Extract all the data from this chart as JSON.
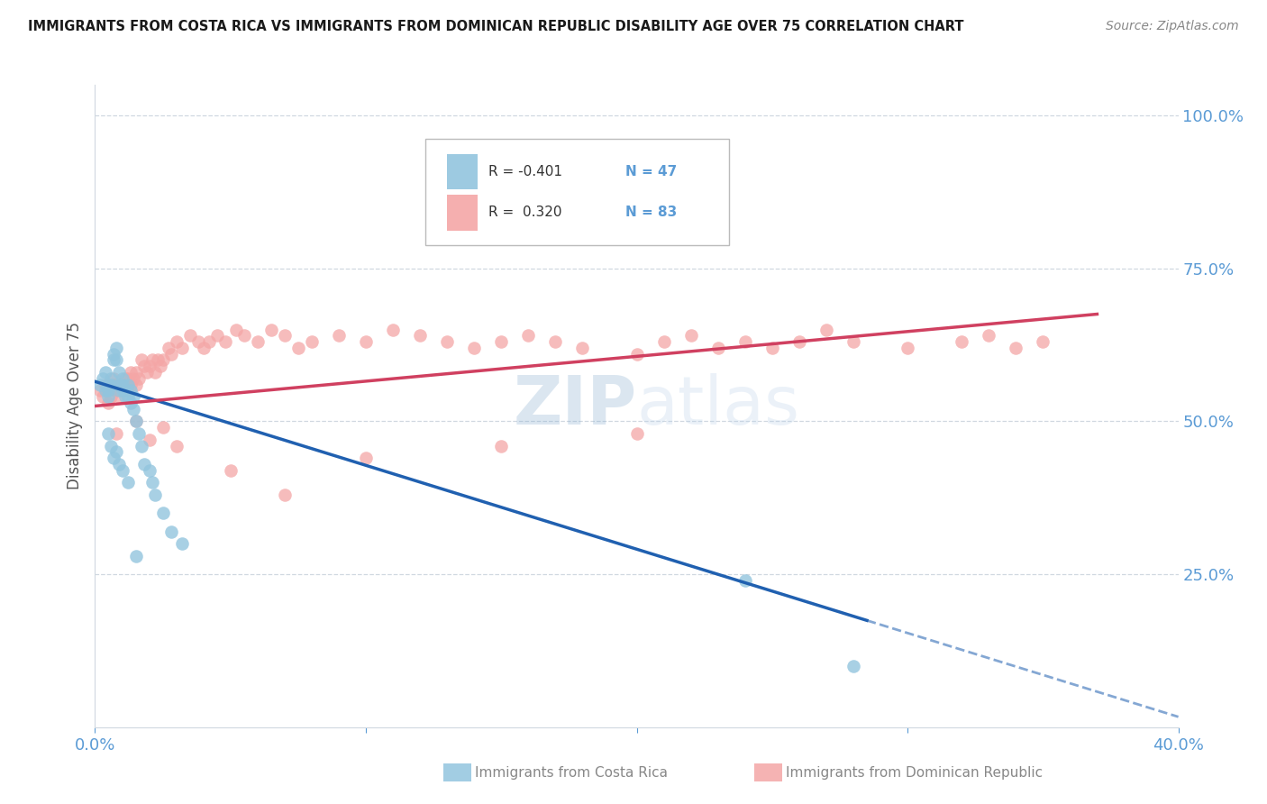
{
  "title": "IMMIGRANTS FROM COSTA RICA VS IMMIGRANTS FROM DOMINICAN REPUBLIC DISABILITY AGE OVER 75 CORRELATION CHART",
  "source": "Source: ZipAtlas.com",
  "xlabel_bottom": "Immigrants from Costa Rica",
  "xlabel_bottom2": "Immigrants from Dominican Republic",
  "ylabel": "Disability Age Over 75",
  "xlim": [
    0.0,
    0.4
  ],
  "ylim": [
    0.0,
    1.05
  ],
  "right_yticklabels": [
    "100.0%",
    "75.0%",
    "50.0%",
    "25.0%"
  ],
  "right_ytick_vals": [
    1.0,
    0.75,
    0.5,
    0.25
  ],
  "legend_r1": "R = -0.401",
  "legend_n1": "N = 47",
  "legend_r2": "R =  0.320",
  "legend_n2": "N = 83",
  "blue_color": "#92c5de",
  "pink_color": "#f4a6a6",
  "blue_line_color": "#2060b0",
  "pink_line_color": "#d04060",
  "axis_color": "#5b9bd5",
  "watermark_color": "#b8cfe8",
  "costa_rica_x": [
    0.002,
    0.003,
    0.004,
    0.004,
    0.005,
    0.005,
    0.005,
    0.006,
    0.006,
    0.007,
    0.007,
    0.008,
    0.008,
    0.009,
    0.009,
    0.009,
    0.01,
    0.01,
    0.01,
    0.011,
    0.011,
    0.012,
    0.012,
    0.013,
    0.013,
    0.014,
    0.014,
    0.015,
    0.016,
    0.017,
    0.018,
    0.02,
    0.021,
    0.022,
    0.025,
    0.028,
    0.032,
    0.005,
    0.006,
    0.007,
    0.008,
    0.009,
    0.01,
    0.012,
    0.015,
    0.24,
    0.28
  ],
  "costa_rica_y": [
    0.56,
    0.57,
    0.55,
    0.58,
    0.56,
    0.55,
    0.54,
    0.56,
    0.57,
    0.6,
    0.61,
    0.6,
    0.62,
    0.58,
    0.55,
    0.56,
    0.57,
    0.55,
    0.56,
    0.54,
    0.55,
    0.56,
    0.54,
    0.55,
    0.53,
    0.52,
    0.54,
    0.5,
    0.48,
    0.46,
    0.43,
    0.42,
    0.4,
    0.38,
    0.35,
    0.32,
    0.3,
    0.48,
    0.46,
    0.44,
    0.45,
    0.43,
    0.42,
    0.4,
    0.28,
    0.24,
    0.1
  ],
  "dominican_x": [
    0.002,
    0.003,
    0.004,
    0.005,
    0.005,
    0.006,
    0.007,
    0.007,
    0.008,
    0.008,
    0.009,
    0.01,
    0.01,
    0.011,
    0.011,
    0.012,
    0.012,
    0.013,
    0.013,
    0.014,
    0.015,
    0.015,
    0.016,
    0.017,
    0.018,
    0.019,
    0.02,
    0.021,
    0.022,
    0.023,
    0.024,
    0.025,
    0.027,
    0.028,
    0.03,
    0.032,
    0.035,
    0.038,
    0.04,
    0.042,
    0.045,
    0.048,
    0.052,
    0.055,
    0.06,
    0.065,
    0.07,
    0.075,
    0.08,
    0.09,
    0.1,
    0.11,
    0.12,
    0.13,
    0.14,
    0.15,
    0.16,
    0.17,
    0.18,
    0.2,
    0.21,
    0.22,
    0.23,
    0.24,
    0.25,
    0.26,
    0.27,
    0.28,
    0.3,
    0.32,
    0.33,
    0.34,
    0.35,
    0.008,
    0.015,
    0.02,
    0.025,
    0.03,
    0.05,
    0.07,
    0.1,
    0.15,
    0.2
  ],
  "dominican_y": [
    0.55,
    0.54,
    0.56,
    0.55,
    0.53,
    0.54,
    0.56,
    0.57,
    0.55,
    0.56,
    0.54,
    0.56,
    0.55,
    0.57,
    0.56,
    0.55,
    0.57,
    0.56,
    0.58,
    0.57,
    0.56,
    0.58,
    0.57,
    0.6,
    0.59,
    0.58,
    0.59,
    0.6,
    0.58,
    0.6,
    0.59,
    0.6,
    0.62,
    0.61,
    0.63,
    0.62,
    0.64,
    0.63,
    0.62,
    0.63,
    0.64,
    0.63,
    0.65,
    0.64,
    0.63,
    0.65,
    0.64,
    0.62,
    0.63,
    0.64,
    0.63,
    0.65,
    0.64,
    0.63,
    0.62,
    0.63,
    0.64,
    0.63,
    0.62,
    0.61,
    0.63,
    0.64,
    0.62,
    0.63,
    0.62,
    0.63,
    0.65,
    0.63,
    0.62,
    0.63,
    0.64,
    0.62,
    0.63,
    0.48,
    0.5,
    0.47,
    0.49,
    0.46,
    0.42,
    0.38,
    0.44,
    0.46,
    0.48
  ],
  "cr_line_x0": 0.0,
  "cr_line_y0": 0.565,
  "cr_line_x1": 0.285,
  "cr_line_y1": 0.175,
  "cr_line_solid_end": 0.285,
  "cr_line_dashed_end": 0.4,
  "dr_line_x0": 0.0,
  "dr_line_y0": 0.525,
  "dr_line_x1": 0.37,
  "dr_line_y1": 0.675
}
